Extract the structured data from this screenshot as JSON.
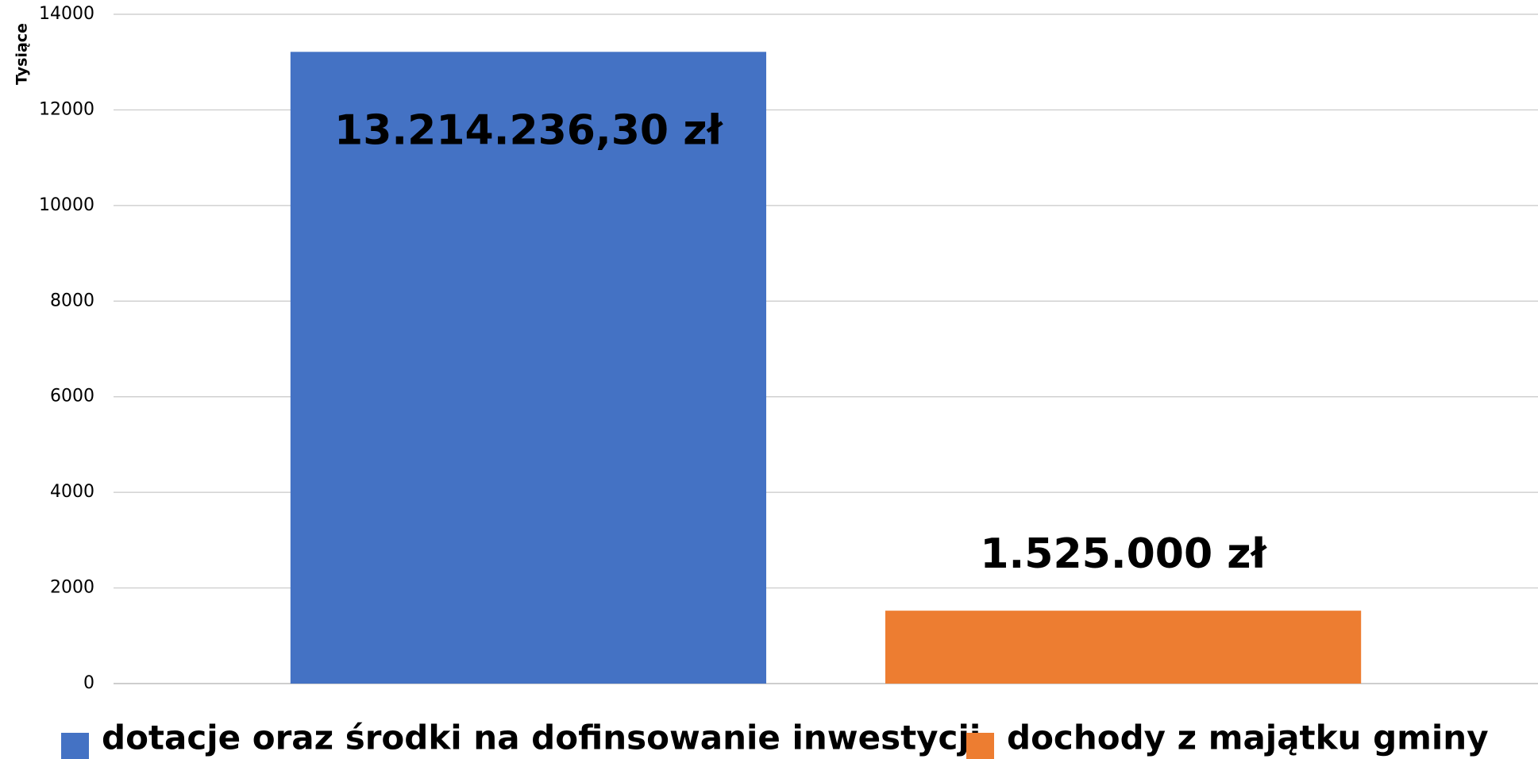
{
  "chart_data": {
    "type": "bar",
    "y_label": "Tysiące",
    "categories": [
      null
    ],
    "series": [
      {
        "name": "dotacje oraz środki na dofinsowanie inwestycji",
        "color": "#4472c4",
        "values": [
          13214.2363
        ],
        "value_labels": [
          "13.214.236,30 zł"
        ]
      },
      {
        "name": "dochody z majątku gminy",
        "color": "#ed7d31",
        "values": [
          1525
        ],
        "value_labels": [
          "1.525.000 zł"
        ]
      }
    ],
    "ylim": [
      0,
      14000
    ],
    "yticks": [
      0,
      2000,
      4000,
      6000,
      8000,
      10000,
      12000,
      14000
    ],
    "grid": true,
    "legend": "bottom"
  }
}
